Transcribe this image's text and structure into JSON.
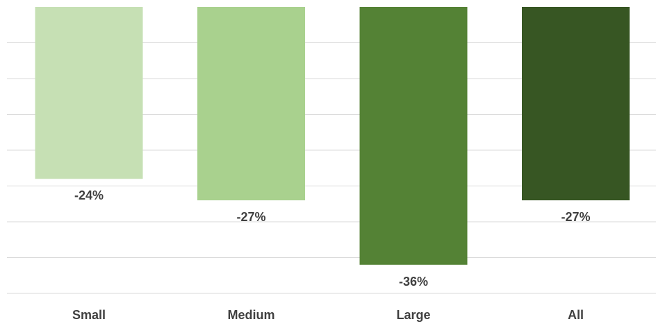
{
  "chart_data": {
    "type": "bar",
    "categories": [
      "Small",
      "Medium",
      "Large",
      "All"
    ],
    "values": [
      -24,
      -27,
      -36,
      -27
    ],
    "data_labels": [
      "-24%",
      "-27%",
      "-36%",
      "-27%"
    ],
    "ylim": [
      -40,
      0
    ],
    "grid": true,
    "legend": "none",
    "colors": [
      "#c6e0b4",
      "#a9d18e",
      "#548235",
      "#375623"
    ]
  }
}
